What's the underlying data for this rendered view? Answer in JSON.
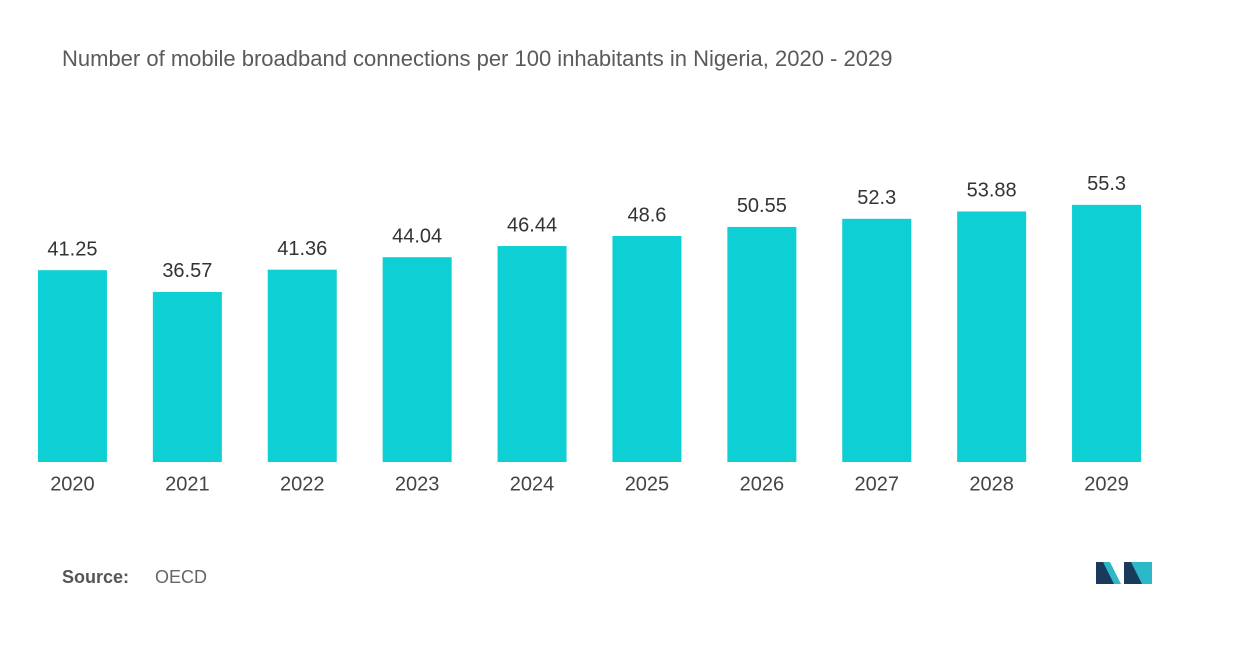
{
  "chart_data": {
    "type": "bar",
    "title": "Number of mobile broadband connections per 100 inhabitants in Nigeria, 2020 - 2029",
    "categories": [
      "2020",
      "2021",
      "2022",
      "2023",
      "2024",
      "2025",
      "2026",
      "2027",
      "2028",
      "2029"
    ],
    "values": [
      41.25,
      36.57,
      41.36,
      44.04,
      46.44,
      48.6,
      50.55,
      52.3,
      53.88,
      55.3
    ],
    "color": "#0ecfd3",
    "ylim": [
      0,
      60
    ],
    "source_label": "Source:",
    "source": "OECD"
  }
}
